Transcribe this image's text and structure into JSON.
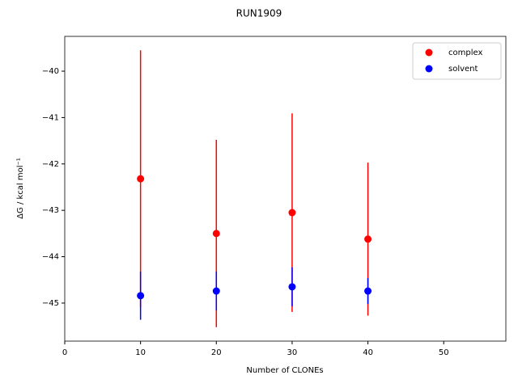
{
  "chart_data": {
    "type": "errorbar-scatter",
    "title": "RUN1909",
    "x_label": "Number of CLONEs",
    "y_label": "ΔG / kcal mol⁻¹",
    "x": [
      10,
      20,
      30,
      40
    ],
    "series": [
      {
        "name": "complex",
        "color": "#ff0000",
        "values": [
          -42.32,
          -43.5,
          -43.05,
          -43.62
        ],
        "errors": [
          2.77,
          2.02,
          2.14,
          1.65
        ]
      },
      {
        "name": "solvent",
        "color": "#0000ff",
        "values": [
          -44.84,
          -44.74,
          -44.65,
          -44.74
        ],
        "errors": [
          0.52,
          0.42,
          0.42,
          0.28
        ]
      }
    ],
    "xlim": [
      0,
      58.2
    ],
    "ylim": [
      -45.82,
      -39.25
    ],
    "xticks": [
      0,
      10,
      20,
      30,
      40,
      50
    ],
    "yticks": [
      {
        "value": -45,
        "label": "−45"
      },
      {
        "value": -44,
        "label": "−44"
      },
      {
        "value": -43,
        "label": "−43"
      },
      {
        "value": -42,
        "label": "−42"
      },
      {
        "value": -41,
        "label": "−41"
      },
      {
        "value": -40,
        "label": "−40"
      }
    ],
    "legend": "upper right"
  }
}
